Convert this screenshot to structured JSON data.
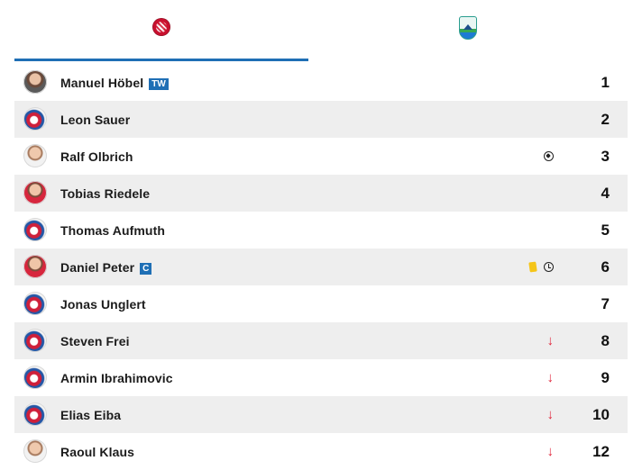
{
  "tabs": [
    {
      "team": "home",
      "logo": "club-crest-home",
      "active": true
    },
    {
      "team": "away",
      "logo": "club-crest-tsv",
      "active": false
    }
  ],
  "accent_color": "#1f6fb5",
  "players": [
    {
      "name": "Manuel Höbel",
      "badge": "TW",
      "avatar": "photo-dark",
      "events": [],
      "number": "1"
    },
    {
      "name": "Leon Sauer",
      "badge": "",
      "avatar": "club",
      "events": [],
      "number": "2"
    },
    {
      "name": "Ralf Olbrich",
      "badge": "",
      "avatar": "photo-white",
      "events": [
        "ball-icon"
      ],
      "number": "3"
    },
    {
      "name": "Tobias Riedele",
      "badge": "",
      "avatar": "photo-red",
      "events": [],
      "number": "4"
    },
    {
      "name": "Thomas Aufmuth",
      "badge": "",
      "avatar": "club",
      "events": [],
      "number": "5"
    },
    {
      "name": "Daniel Peter",
      "badge": "C",
      "avatar": "photo-red",
      "events": [
        "yellow-card-icon",
        "clock-icon"
      ],
      "number": "6"
    },
    {
      "name": "Jonas Unglert",
      "badge": "",
      "avatar": "club",
      "events": [],
      "number": "7"
    },
    {
      "name": "Steven Frei",
      "badge": "",
      "avatar": "club",
      "events": [
        "sub-out-icon"
      ],
      "number": "8"
    },
    {
      "name": "Armin Ibrahimovic",
      "badge": "",
      "avatar": "club",
      "events": [
        "sub-out-icon"
      ],
      "number": "9"
    },
    {
      "name": "Elias Eiba",
      "badge": "",
      "avatar": "club",
      "events": [
        "sub-out-icon"
      ],
      "number": "10"
    },
    {
      "name": "Raoul Klaus",
      "badge": "",
      "avatar": "photo-white",
      "events": [
        "sub-out-icon"
      ],
      "number": "12"
    }
  ],
  "icon_glyphs": {
    "sub-out-icon": "↓"
  }
}
